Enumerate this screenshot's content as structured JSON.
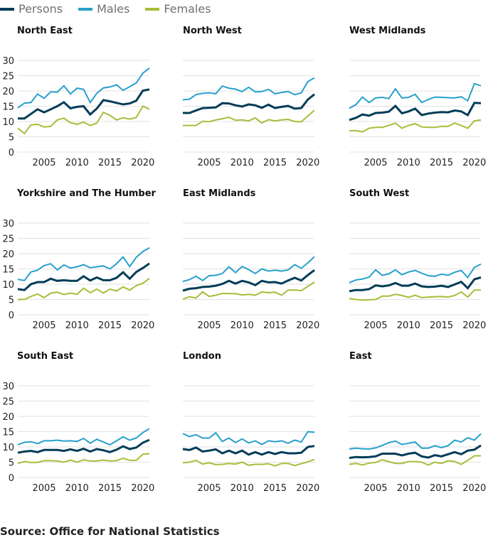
{
  "legend": [
    {
      "name": "Persons",
      "color": "#003c57"
    },
    {
      "name": "Males",
      "color": "#27a0cc"
    },
    {
      "name": "Females",
      "color": "#a8bd3a"
    }
  ],
  "source": "Source: Office for National Statistics",
  "chart_data": [
    {
      "type": "line",
      "title": "North East",
      "ylim": [
        0,
        30
      ],
      "yticks": [
        0,
        5,
        10,
        15,
        20,
        25,
        30
      ],
      "xticks": [
        2005,
        2010,
        2015,
        2020
      ],
      "grid": true,
      "x": [
        2001,
        2002,
        2003,
        2004,
        2005,
        2006,
        2007,
        2008,
        2009,
        2010,
        2011,
        2012,
        2013,
        2014,
        2015,
        2016,
        2017,
        2018,
        2019,
        2020,
        2021
      ],
      "series": [
        {
          "name": "Persons",
          "values": [
            11,
            11,
            12.5,
            14,
            13,
            14,
            15,
            16.3,
            14.3,
            14.8,
            15,
            12.3,
            14.2,
            17,
            16.6,
            16.1,
            15.6,
            15.9,
            16.8,
            20.1,
            20.5
          ]
        },
        {
          "name": "Males",
          "values": [
            14.5,
            16,
            16.2,
            19,
            17.6,
            19.7,
            19.6,
            21.7,
            19,
            20.9,
            20.5,
            16.2,
            19.2,
            21,
            21.3,
            22,
            20.2,
            21.4,
            22.6,
            25.8,
            27.5
          ]
        },
        {
          "name": "Females",
          "values": [
            7.8,
            6.1,
            8.9,
            9.1,
            8.2,
            8.4,
            10.5,
            11.1,
            9.6,
            9.1,
            9.8,
            8.7,
            9.5,
            13,
            12,
            10.5,
            11.2,
            10.8,
            11.3,
            15,
            14
          ]
        }
      ]
    },
    {
      "type": "line",
      "title": "North West",
      "ylim": [
        0,
        30
      ],
      "yticks": [
        0,
        5,
        10,
        15,
        20,
        25,
        30
      ],
      "xticks": [
        2005,
        2010,
        2015,
        2020
      ],
      "grid": true,
      "x": [
        2001,
        2002,
        2003,
        2004,
        2005,
        2006,
        2007,
        2008,
        2009,
        2010,
        2011,
        2012,
        2013,
        2014,
        2015,
        2016,
        2017,
        2018,
        2019,
        2020,
        2021
      ],
      "series": [
        {
          "name": "Persons",
          "values": [
            12.8,
            12.8,
            13.6,
            14.4,
            14.5,
            14.6,
            16.0,
            15.9,
            15.3,
            14.9,
            15.6,
            15.3,
            14.5,
            15.5,
            14.4,
            14.8,
            15.1,
            14.2,
            14.4,
            17.2,
            18.9
          ]
        },
        {
          "name": "Males",
          "values": [
            17.1,
            17.3,
            18.8,
            19.2,
            19.4,
            19.1,
            21.6,
            20.9,
            20.6,
            19.8,
            21.2,
            19.7,
            19.8,
            20.5,
            19.1,
            19.5,
            19.8,
            18.8,
            19.4,
            23.1,
            24.3
          ]
        },
        {
          "name": "Females",
          "values": [
            8.7,
            8.7,
            8.7,
            10.1,
            9.9,
            10.5,
            10.9,
            11.4,
            10.4,
            10.5,
            10.2,
            11.2,
            9.5,
            10.6,
            10.2,
            10.5,
            10.7,
            10.0,
            9.9,
            11.8,
            13.7
          ]
        }
      ]
    },
    {
      "type": "line",
      "title": "West Midlands",
      "ylim": [
        0,
        30
      ],
      "yticks": [
        0,
        5,
        10,
        15,
        20,
        25,
        30
      ],
      "xticks": [
        2005,
        2010,
        2015,
        2020
      ],
      "grid": true,
      "x": [
        2001,
        2002,
        2003,
        2004,
        2005,
        2006,
        2007,
        2008,
        2009,
        2010,
        2011,
        2012,
        2013,
        2014,
        2015,
        2016,
        2017,
        2018,
        2019,
        2020,
        2021
      ],
      "series": [
        {
          "name": "Persons",
          "values": [
            10.5,
            11.2,
            12.3,
            11.9,
            12.8,
            12.9,
            13.2,
            15.1,
            12.7,
            13.3,
            14.2,
            12.1,
            12.6,
            12.9,
            13.1,
            13.0,
            13.6,
            13.3,
            12.1,
            16.1,
            16.0
          ]
        },
        {
          "name": "Males",
          "values": [
            14.3,
            15.5,
            18.0,
            16.2,
            17.7,
            17.9,
            17.5,
            20.7,
            17.7,
            17.9,
            18.9,
            16.2,
            17.2,
            18.0,
            17.9,
            17.8,
            17.7,
            18.1,
            16.8,
            22.4,
            21.7
          ]
        },
        {
          "name": "Females",
          "values": [
            7.0,
            7.0,
            6.6,
            7.8,
            8.1,
            8.1,
            8.7,
            9.5,
            7.8,
            8.7,
            9.3,
            8.2,
            8.1,
            8.1,
            8.4,
            8.4,
            9.5,
            8.7,
            7.8,
            10.2,
            10.5
          ]
        }
      ]
    },
    {
      "type": "line",
      "title": "Yorkshire and The Humber",
      "ylim": [
        0,
        30
      ],
      "yticks": [
        0,
        5,
        10,
        15,
        20,
        25,
        30
      ],
      "xticks": [
        2005,
        2010,
        2015,
        2020
      ],
      "grid": true,
      "x": [
        2001,
        2002,
        2003,
        2004,
        2005,
        2006,
        2007,
        2008,
        2009,
        2010,
        2011,
        2012,
        2013,
        2014,
        2015,
        2016,
        2017,
        2018,
        2019,
        2020,
        2021
      ],
      "series": [
        {
          "name": "Persons",
          "values": [
            8.4,
            8.1,
            10.0,
            10.7,
            10.7,
            11.8,
            11.1,
            11.3,
            11.1,
            11.1,
            12.6,
            11.2,
            12.2,
            11.3,
            11.3,
            12.1,
            13.9,
            11.8,
            14.0,
            15.3,
            16.8
          ]
        },
        {
          "name": "Males",
          "values": [
            11.6,
            11.2,
            14.0,
            14.6,
            16.1,
            16.7,
            14.7,
            16.3,
            15.3,
            15.7,
            16.4,
            15.4,
            15.7,
            16.0,
            15.0,
            16.7,
            18.9,
            15.8,
            18.8,
            20.7,
            21.9
          ]
        },
        {
          "name": "Females",
          "values": [
            5.0,
            5.0,
            6.0,
            6.8,
            5.6,
            7.1,
            7.4,
            6.6,
            7.1,
            6.7,
            8.7,
            7.2,
            8.4,
            7.1,
            8.4,
            7.8,
            9.1,
            8.1,
            9.5,
            10.3,
            11.9
          ]
        }
      ]
    },
    {
      "type": "line",
      "title": "East Midlands",
      "ylim": [
        0,
        30
      ],
      "yticks": [
        0,
        5,
        10,
        15,
        20,
        25,
        30
      ],
      "xticks": [
        2005,
        2010,
        2015,
        2020
      ],
      "grid": true,
      "x": [
        2001,
        2002,
        2003,
        2004,
        2005,
        2006,
        2007,
        2008,
        2009,
        2010,
        2011,
        2012,
        2013,
        2014,
        2015,
        2016,
        2017,
        2018,
        2019,
        2020,
        2021
      ],
      "series": [
        {
          "name": "Persons",
          "values": [
            7.9,
            8.5,
            8.7,
            9.1,
            9.2,
            9.5,
            10.1,
            11.1,
            10.2,
            11.1,
            10.6,
            9.7,
            11.1,
            10.6,
            10.7,
            10.2,
            11.2,
            12.1,
            11.2,
            13.0,
            14.6
          ]
        },
        {
          "name": "Males",
          "values": [
            10.9,
            11.5,
            12.6,
            11.2,
            12.8,
            12.9,
            13.5,
            15.7,
            13.8,
            15.8,
            14.8,
            13.5,
            15.0,
            14.3,
            14.6,
            14.3,
            14.7,
            16.4,
            15.2,
            17.0,
            19.0
          ]
        },
        {
          "name": "Females",
          "values": [
            5.1,
            5.9,
            5.5,
            7.5,
            6.0,
            6.4,
            7.0,
            6.9,
            6.9,
            6.5,
            6.7,
            6.4,
            7.5,
            7.2,
            7.4,
            6.4,
            8.1,
            8.1,
            7.9,
            9.3,
            10.7
          ]
        }
      ]
    },
    {
      "type": "line",
      "title": "South West",
      "ylim": [
        0,
        30
      ],
      "yticks": [
        0,
        5,
        10,
        15,
        20,
        25,
        30
      ],
      "xticks": [
        2005,
        2010,
        2015,
        2020
      ],
      "grid": true,
      "x": [
        2001,
        2002,
        2003,
        2004,
        2005,
        2006,
        2007,
        2008,
        2009,
        2010,
        2011,
        2012,
        2013,
        2014,
        2015,
        2016,
        2017,
        2018,
        2019,
        2020,
        2021
      ],
      "series": [
        {
          "name": "Persons",
          "values": [
            7.7,
            8.1,
            8.1,
            8.4,
            9.6,
            9.3,
            9.6,
            10.4,
            9.5,
            9.5,
            10.2,
            9.3,
            9.1,
            9.2,
            9.5,
            9.1,
            9.9,
            10.8,
            8.7,
            11.6,
            12.2
          ]
        },
        {
          "name": "Males",
          "values": [
            10.5,
            11.4,
            11.7,
            12.3,
            14.7,
            12.9,
            13.4,
            14.7,
            13.1,
            14.0,
            14.5,
            13.6,
            12.8,
            12.6,
            13.3,
            12.9,
            13.9,
            14.5,
            12.2,
            15.5,
            16.6
          ]
        },
        {
          "name": "Females",
          "values": [
            5.3,
            5.0,
            4.8,
            4.9,
            5.0,
            6.1,
            6.1,
            6.7,
            6.3,
            5.7,
            6.4,
            5.6,
            5.8,
            5.9,
            6.0,
            5.8,
            6.3,
            7.5,
            5.8,
            8.1,
            8.1
          ]
        }
      ]
    },
    {
      "type": "line",
      "title": "South East",
      "ylim": [
        0,
        30
      ],
      "yticks": [
        0,
        5,
        10,
        15,
        20,
        25,
        30
      ],
      "xticks": [
        2005,
        2010,
        2015,
        2020
      ],
      "grid": true,
      "x": [
        2001,
        2002,
        2003,
        2004,
        2005,
        2006,
        2007,
        2008,
        2009,
        2010,
        2011,
        2012,
        2013,
        2014,
        2015,
        2016,
        2017,
        2018,
        2019,
        2020,
        2021
      ],
      "series": [
        {
          "name": "Persons",
          "values": [
            8.1,
            8.5,
            8.7,
            8.3,
            9.0,
            9.0,
            9.0,
            8.7,
            9.2,
            8.7,
            9.4,
            8.5,
            9.3,
            8.9,
            8.3,
            9.1,
            10.2,
            9.3,
            9.8,
            11.4,
            12.3
          ]
        },
        {
          "name": "Males",
          "values": [
            10.7,
            11.5,
            11.7,
            11.1,
            12.0,
            12.0,
            12.2,
            11.9,
            12.0,
            11.8,
            12.8,
            11.2,
            12.5,
            11.6,
            10.7,
            12.0,
            13.3,
            12.2,
            12.9,
            14.7,
            16.0
          ]
        },
        {
          "name": "Females",
          "values": [
            4.6,
            5.2,
            4.9,
            4.9,
            5.5,
            5.5,
            5.4,
            5.0,
            5.7,
            5.0,
            5.8,
            5.4,
            5.4,
            5.7,
            5.4,
            5.5,
            6.3,
            5.6,
            5.6,
            7.6,
            7.8
          ]
        }
      ]
    },
    {
      "type": "line",
      "title": "London",
      "ylim": [
        0,
        30
      ],
      "yticks": [
        0,
        5,
        10,
        15,
        20,
        25,
        30
      ],
      "xticks": [
        2005,
        2010,
        2015,
        2020
      ],
      "grid": true,
      "x": [
        2001,
        2002,
        2003,
        2004,
        2005,
        2006,
        2007,
        2008,
        2009,
        2010,
        2011,
        2012,
        2013,
        2014,
        2015,
        2016,
        2017,
        2018,
        2019,
        2020,
        2021
      ],
      "series": [
        {
          "name": "Persons",
          "values": [
            9.3,
            9.0,
            9.8,
            8.5,
            8.8,
            9.2,
            7.9,
            8.8,
            7.9,
            8.8,
            7.5,
            8.3,
            7.5,
            8.3,
            7.7,
            8.3,
            7.9,
            7.9,
            8.1,
            10.0,
            10.3
          ]
        },
        {
          "name": "Males",
          "values": [
            14.4,
            13.4,
            14.0,
            12.9,
            12.9,
            14.6,
            11.8,
            12.9,
            11.4,
            12.6,
            11.3,
            12.0,
            10.8,
            12.0,
            11.7,
            12.0,
            11.2,
            12.2,
            11.6,
            15.0,
            14.8
          ]
        },
        {
          "name": "Females",
          "values": [
            4.8,
            5.0,
            5.6,
            4.4,
            4.8,
            4.2,
            4.3,
            4.6,
            4.4,
            5.0,
            4.0,
            4.3,
            4.3,
            4.5,
            3.8,
            4.6,
            4.6,
            3.9,
            4.5,
            5.1,
            5.9
          ]
        }
      ]
    },
    {
      "type": "line",
      "title": "East",
      "ylim": [
        0,
        30
      ],
      "yticks": [
        0,
        5,
        10,
        15,
        20,
        25,
        30
      ],
      "xticks": [
        2005,
        2010,
        2015,
        2020
      ],
      "grid": true,
      "x": [
        2001,
        2002,
        2003,
        2004,
        2005,
        2006,
        2007,
        2008,
        2009,
        2010,
        2011,
        2012,
        2013,
        2014,
        2015,
        2016,
        2017,
        2018,
        2019,
        2020,
        2021
      ],
      "series": [
        {
          "name": "Persons",
          "values": [
            6.4,
            6.7,
            6.6,
            6.7,
            6.9,
            7.8,
            7.8,
            7.8,
            7.2,
            7.8,
            8.1,
            6.9,
            6.5,
            7.3,
            6.9,
            7.6,
            8.3,
            7.6,
            8.8,
            9.1,
            10.5
          ]
        },
        {
          "name": "Males",
          "values": [
            9.3,
            9.6,
            9.4,
            9.3,
            9.7,
            10.5,
            11.4,
            11.9,
            10.8,
            11.2,
            11.6,
            9.6,
            9.6,
            10.4,
            9.8,
            10.4,
            12.2,
            11.6,
            13.0,
            12.2,
            14.3
          ]
        },
        {
          "name": "Females",
          "values": [
            4.3,
            4.6,
            4.1,
            4.7,
            4.9,
            5.8,
            5.2,
            4.6,
            4.6,
            5.2,
            5.2,
            5.0,
            4.1,
            5.0,
            4.6,
            5.5,
            5.2,
            4.3,
            5.6,
            7.1,
            7.1
          ]
        }
      ]
    }
  ]
}
